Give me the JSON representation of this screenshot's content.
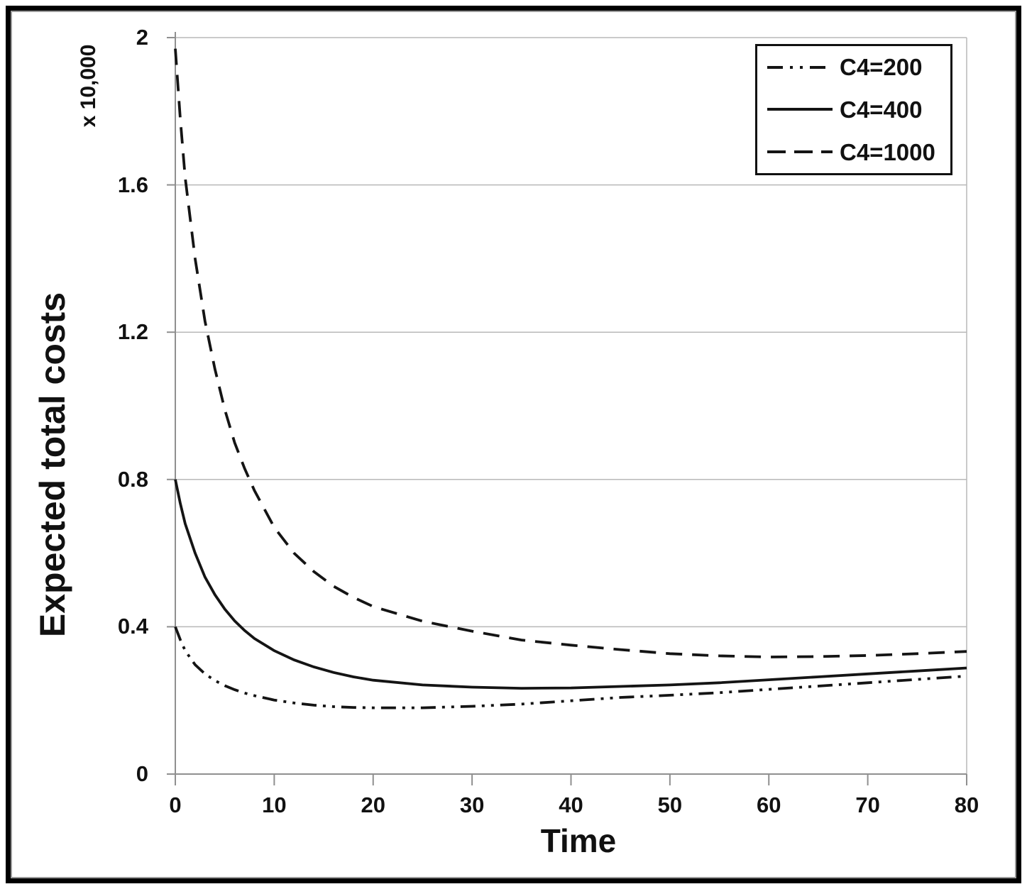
{
  "figure": {
    "background": "#ffffff",
    "border_color": "#000000",
    "inner_border_color": "#9c9c9c"
  },
  "chart_data": {
    "type": "line",
    "title": "",
    "xlabel": "Time",
    "ylabel": "Expected total costs",
    "y_multiplier_label": "x 10,000",
    "xlim": [
      0,
      80
    ],
    "ylim": [
      0,
      2
    ],
    "x_ticks": [
      0,
      10,
      20,
      30,
      40,
      50,
      60,
      70,
      80
    ],
    "y_ticks": [
      0,
      0.4,
      0.8,
      1.2,
      1.6,
      2
    ],
    "y_tick_labels": [
      "0",
      "0.4",
      "0.8",
      "1.2",
      "1.6",
      "2"
    ],
    "grid": true,
    "legend_position": "top-right",
    "x": [
      0,
      0.5,
      1,
      2,
      3,
      4,
      5,
      6,
      7,
      8,
      10,
      12,
      14,
      16,
      18,
      20,
      25,
      30,
      35,
      40,
      45,
      50,
      55,
      60,
      65,
      70,
      75,
      80
    ],
    "series": [
      {
        "name": "C4=200",
        "style": "dash-dot-dot",
        "color": "#141414",
        "values": [
          0.4,
          0.365,
          0.335,
          0.297,
          0.272,
          0.254,
          0.24,
          0.229,
          0.22,
          0.213,
          0.201,
          0.193,
          0.187,
          0.183,
          0.181,
          0.18,
          0.18,
          0.184,
          0.19,
          0.199,
          0.208,
          0.214,
          0.221,
          0.23,
          0.239,
          0.248,
          0.257,
          0.266
        ]
      },
      {
        "name": "C4=400",
        "style": "solid",
        "color": "#141414",
        "values": [
          0.8,
          0.735,
          0.68,
          0.6,
          0.535,
          0.487,
          0.448,
          0.416,
          0.39,
          0.368,
          0.335,
          0.31,
          0.291,
          0.276,
          0.264,
          0.255,
          0.242,
          0.236,
          0.233,
          0.234,
          0.238,
          0.242,
          0.248,
          0.256,
          0.264,
          0.272,
          0.28,
          0.288
        ]
      },
      {
        "name": "C4=1000",
        "style": "dashed",
        "color": "#141414",
        "values": [
          1.97,
          1.78,
          1.62,
          1.4,
          1.23,
          1.1,
          0.99,
          0.9,
          0.83,
          0.77,
          0.67,
          0.6,
          0.55,
          0.51,
          0.48,
          0.455,
          0.415,
          0.388,
          0.364,
          0.35,
          0.338,
          0.327,
          0.321,
          0.318,
          0.319,
          0.322,
          0.327,
          0.333
        ]
      }
    ],
    "colors": {
      "gridline": "#b8b8b8",
      "axis": "#8f8f8f",
      "curve": "#141414",
      "text": "#111111"
    }
  }
}
